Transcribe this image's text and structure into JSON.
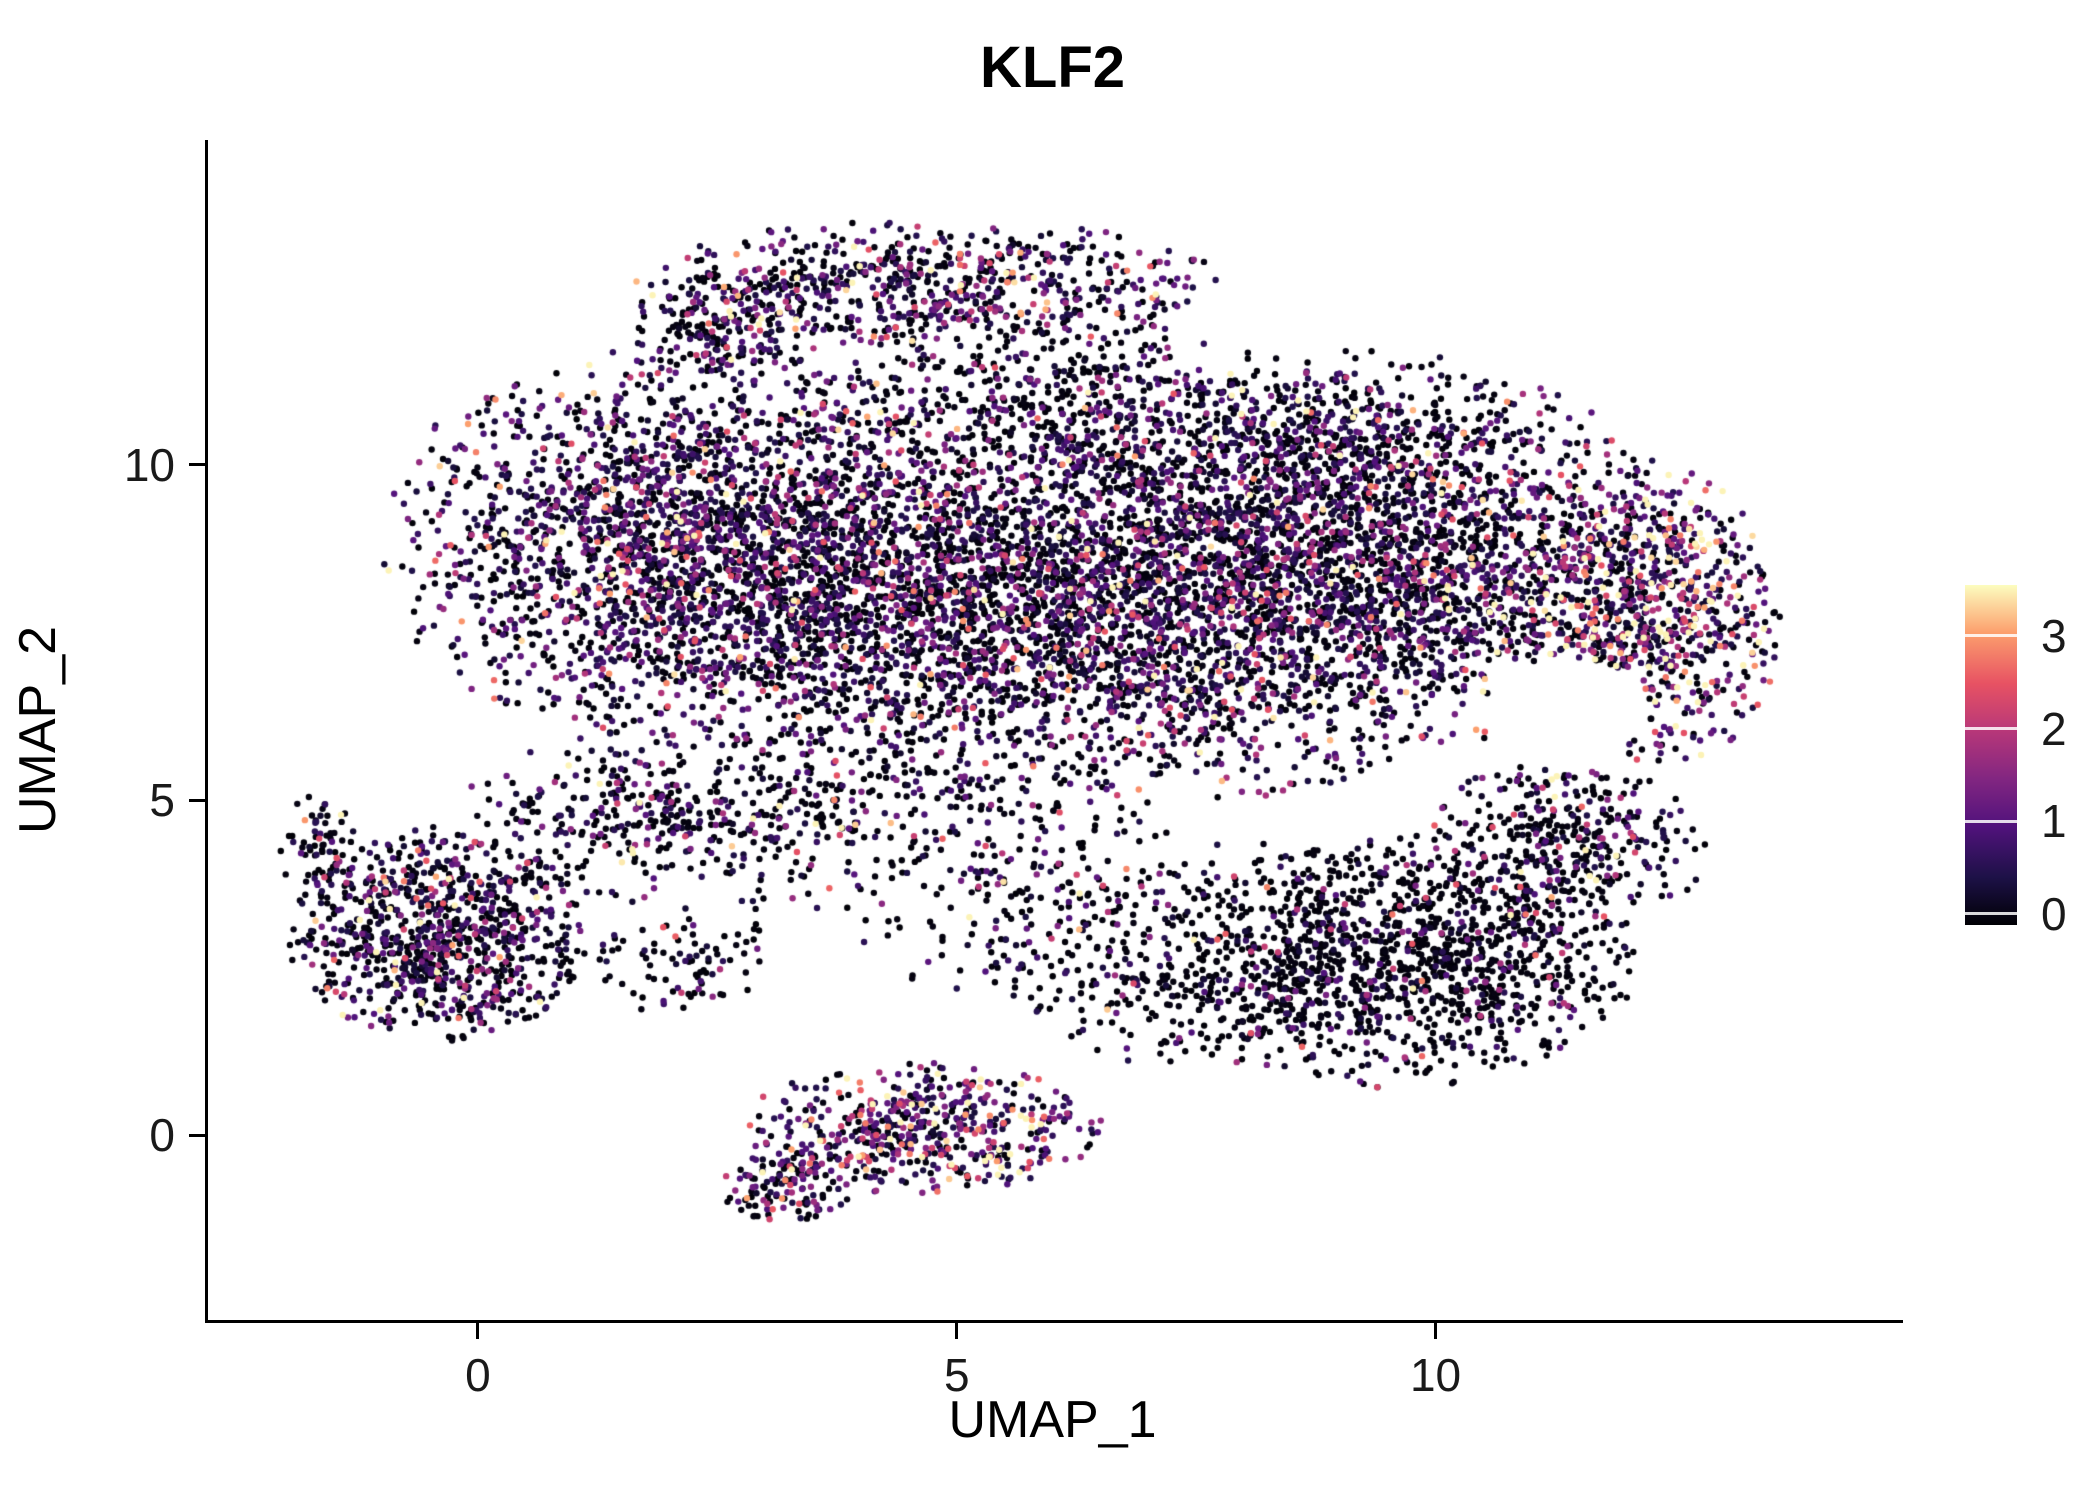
{
  "chart_data": {
    "type": "scatter",
    "title": "KLF2",
    "xlabel": "UMAP_1",
    "ylabel": "UMAP_2",
    "xlim": [
      -2.85,
      14.85
    ],
    "ylim": [
      -2.76,
      14.85
    ],
    "x_ticks": {
      "values": [
        0,
        5,
        10
      ],
      "labels": [
        "0",
        "5",
        "10"
      ]
    },
    "y_ticks": {
      "values": [
        0,
        5,
        10
      ],
      "labels": [
        "0",
        "5",
        "10"
      ]
    },
    "point_radius_px": 3.2,
    "seed": 42,
    "colorbar": {
      "ticks": [
        {
          "value": 0,
          "label": "0"
        },
        {
          "value": 1,
          "label": "1"
        },
        {
          "value": 2,
          "label": "2"
        },
        {
          "value": 3,
          "label": "3"
        }
      ],
      "range": [
        -0.12,
        3.55
      ],
      "color_domain": [
        0,
        3.5
      ],
      "stops": [
        {
          "t": 0.0,
          "color": "#000004"
        },
        {
          "t": 0.14,
          "color": "#1d1147"
        },
        {
          "t": 0.29,
          "color": "#51127c"
        },
        {
          "t": 0.43,
          "color": "#822681"
        },
        {
          "t": 0.57,
          "color": "#b73779"
        },
        {
          "t": 0.71,
          "color": "#e75263"
        },
        {
          "t": 0.86,
          "color": "#fc9f6d"
        },
        {
          "t": 1.0,
          "color": "#fcfdbf"
        }
      ]
    },
    "holes": [
      {
        "cx": 11.35,
        "cy": 6.35,
        "rx": 0.85,
        "ry": 0.78
      }
    ],
    "clusters": [
      {
        "name": "main-left-lobe",
        "cx": 2.2,
        "cy": 8.8,
        "sx": 1.5,
        "sy": 1.4,
        "n": 2500,
        "zero_frac": 0.42,
        "expr_mean": 0.8,
        "trunc": 2.2
      },
      {
        "name": "main-central",
        "cx": 5.0,
        "cy": 7.9,
        "sx": 1.5,
        "sy": 1.5,
        "n": 2000,
        "zero_frac": 0.55,
        "expr_mean": 0.75,
        "trunc": 2.2
      },
      {
        "name": "main-right-central",
        "cx": 7.7,
        "cy": 8.1,
        "sx": 1.4,
        "sy": 1.4,
        "n": 2200,
        "zero_frac": 0.5,
        "expr_mean": 0.8,
        "trunc": 2.2
      },
      {
        "name": "main-right",
        "cx": 10.1,
        "cy": 8.6,
        "sx": 1.15,
        "sy": 1.25,
        "n": 1300,
        "zero_frac": 0.48,
        "expr_mean": 0.9,
        "trunc": 2.2
      },
      {
        "name": "far-right-edge",
        "cx": 12.2,
        "cy": 7.7,
        "sx": 0.7,
        "sy": 1.15,
        "n": 850,
        "zero_frac": 0.3,
        "expr_mean": 1.5,
        "trunc": 2.0
      },
      {
        "name": "top-arc",
        "cx": 4.7,
        "cy": 12.7,
        "sx": 1.55,
        "sy": 0.48,
        "n": 650,
        "zero_frac": 0.45,
        "expr_mean": 0.9,
        "trunc": 2.0
      },
      {
        "name": "top-arc-left",
        "cx": 2.6,
        "cy": 12.1,
        "sx": 0.5,
        "sy": 0.45,
        "n": 180,
        "zero_frac": 0.5,
        "expr_mean": 0.8,
        "trunc": 2.0
      },
      {
        "name": "top-bridge",
        "cx": 5.7,
        "cy": 11.2,
        "sx": 1.1,
        "sy": 0.6,
        "n": 320,
        "zero_frac": 0.6,
        "expr_mean": 0.8,
        "trunc": 2.0
      },
      {
        "name": "upper-right",
        "cx": 8.6,
        "cy": 10.5,
        "sx": 1.5,
        "sy": 0.6,
        "n": 550,
        "zero_frac": 0.55,
        "expr_mean": 0.85,
        "trunc": 2.1
      },
      {
        "name": "left-cluster",
        "cx": -0.45,
        "cy": 2.95,
        "sx": 0.8,
        "sy": 0.8,
        "n": 900,
        "zero_frac": 0.5,
        "expr_mean": 0.85,
        "trunc": 1.95
      },
      {
        "name": "left-cluster-tail",
        "cx": -1.7,
        "cy": 4.3,
        "sx": 0.22,
        "sy": 0.45,
        "n": 70,
        "zero_frac": 0.5,
        "expr_mean": 0.8,
        "trunc": 1.8
      },
      {
        "name": "bottom-cluster",
        "cx": 4.6,
        "cy": 0.1,
        "sx": 0.95,
        "sy": 0.5,
        "n": 520,
        "zero_frac": 0.3,
        "expr_mean": 1.3,
        "trunc": 2.0
      },
      {
        "name": "bottom-tail",
        "cx": 3.3,
        "cy": -0.75,
        "sx": 0.45,
        "sy": 0.35,
        "n": 140,
        "zero_frac": 0.35,
        "expr_mean": 1.2,
        "trunc": 1.8
      },
      {
        "name": "lower-right",
        "cx": 9.6,
        "cy": 2.6,
        "sx": 1.25,
        "sy": 0.95,
        "n": 1250,
        "zero_frac": 0.78,
        "expr_mean": 0.7,
        "trunc": 2.0
      },
      {
        "name": "lower-right-ext",
        "cx": 11.3,
        "cy": 4.3,
        "sx": 0.75,
        "sy": 0.65,
        "n": 380,
        "zero_frac": 0.6,
        "expr_mean": 0.9,
        "trunc": 2.0
      },
      {
        "name": "mid-bridge",
        "cx": 3.2,
        "cy": 4.7,
        "sx": 2.0,
        "sy": 0.7,
        "n": 420,
        "zero_frac": 0.6,
        "expr_mean": 0.8,
        "trunc": 2.0
      },
      {
        "name": "bridge-right",
        "cx": 6.5,
        "cy": 3.3,
        "sx": 1.4,
        "sy": 0.7,
        "n": 280,
        "zero_frac": 0.7,
        "expr_mean": 0.8,
        "trunc": 2.0
      },
      {
        "name": "bridge-left",
        "cx": 1.8,
        "cy": 4.9,
        "sx": 1.0,
        "sy": 0.45,
        "n": 180,
        "zero_frac": 0.55,
        "expr_mean": 0.8,
        "trunc": 2.0
      },
      {
        "name": "chain-bottom-right",
        "cx": 7.3,
        "cy": 2.0,
        "sx": 0.8,
        "sy": 0.5,
        "n": 150,
        "zero_frac": 0.75,
        "expr_mean": 0.7,
        "trunc": 2.0
      },
      {
        "name": "chain-left",
        "cx": 2.0,
        "cy": 2.6,
        "sx": 0.6,
        "sy": 0.4,
        "n": 90,
        "zero_frac": 0.7,
        "expr_mean": 0.8,
        "trunc": 2.0
      }
    ]
  }
}
